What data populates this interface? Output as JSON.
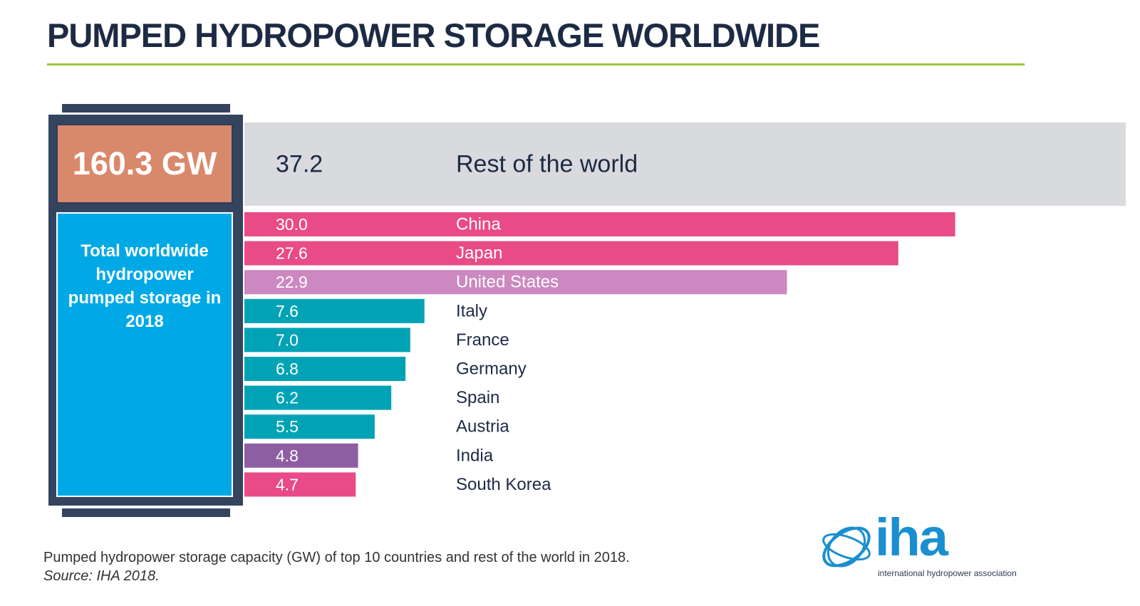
{
  "title": "PUMPED HYDROPOWER STORAGE WORLDWIDE",
  "total": {
    "value_text": "160.3 GW",
    "description": "Total worldwide hydropower pumped storage in 2018"
  },
  "caption": {
    "text": "Pumped hydropower storage capacity (GW) of top 10 countries and rest of the world in 2018.",
    "source": "Source: IHA 2018."
  },
  "logo": {
    "wordmark": "iha",
    "tagline": "international hydropower association"
  },
  "colors": {
    "title_rule": "#9cc63b",
    "battery": "#34445f",
    "total_box": "#d9896b",
    "desc_box": "#00a9e6",
    "rest": "#d8dadd",
    "pink": "#e84b86",
    "light_purple": "#cc88c0",
    "teal": "#00a3b5",
    "purple": "#8e5ea2"
  },
  "chart_data": {
    "type": "bar",
    "orientation": "horizontal",
    "categories": [
      "Rest of the world",
      "China",
      "Japan",
      "United States",
      "Italy",
      "France",
      "Germany",
      "Spain",
      "Austria",
      "India",
      "South Korea"
    ],
    "values": [
      37.2,
      30.0,
      27.6,
      22.9,
      7.6,
      7.0,
      6.8,
      6.2,
      5.5,
      4.8,
      4.7
    ],
    "value_labels": [
      "37.2",
      "30.0",
      "27.6",
      "22.9",
      "7.6",
      "7.0",
      "6.8",
      "6.2",
      "5.5",
      "4.8",
      "4.7"
    ],
    "bar_colors": [
      "#d8dadd",
      "#e84b86",
      "#e84b86",
      "#cc88c0",
      "#00a3b5",
      "#00a3b5",
      "#00a3b5",
      "#00a3b5",
      "#00a3b5",
      "#8e5ea2",
      "#e84b86"
    ],
    "unit": "GW",
    "xlim": [
      0,
      37.2
    ],
    "grid": false
  }
}
